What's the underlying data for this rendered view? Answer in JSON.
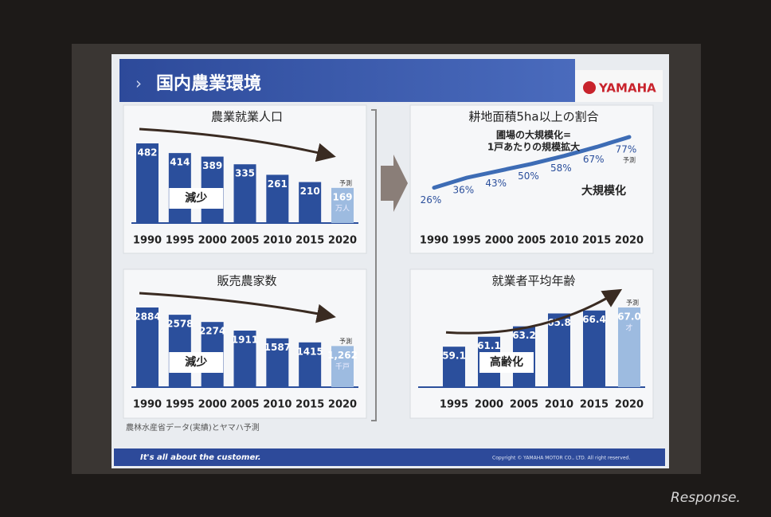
{
  "slide": {
    "title": "国内農業環境",
    "logo": "YAMAHA",
    "source": "農林水産省データ(実績)とヤマハ予測",
    "tagline": "It's all about the customer.",
    "copyright": "Copyright © YAMAHA MOTOR CO., LTD.   All right reserved.",
    "watermark": "Response."
  },
  "chart_data": [
    {
      "type": "bar",
      "title": "農業就業人口",
      "categories": [
        "1990",
        "1995",
        "2000",
        "2005",
        "2010",
        "2015",
        "2020"
      ],
      "values": [
        482,
        414,
        389,
        335,
        261,
        210,
        169
      ],
      "unit": "万人",
      "forecast_label": "予測",
      "annotation": "減少",
      "colors": [
        "#2b4f9c",
        "#2b4f9c",
        "#2b4f9c",
        "#2b4f9c",
        "#2b4f9c",
        "#2b4f9c",
        "#9dbbe0"
      ]
    },
    {
      "type": "bar",
      "title": "販売農家数",
      "categories": [
        "1990",
        "1995",
        "2000",
        "2005",
        "2010",
        "2015",
        "2020"
      ],
      "values": [
        2884,
        2578,
        2274,
        1911,
        1587,
        1415,
        1262
      ],
      "value_labels": [
        "2884",
        "2578",
        "2274",
        "1911",
        "1587",
        "1415",
        "1,262"
      ],
      "unit": "千戸",
      "forecast_label": "予測",
      "annotation": "減少",
      "colors": [
        "#2b4f9c",
        "#2b4f9c",
        "#2b4f9c",
        "#2b4f9c",
        "#2b4f9c",
        "#2b4f9c",
        "#9dbbe0"
      ]
    },
    {
      "type": "line",
      "title": "耕地面積5ha以上の割合",
      "subtitle": [
        "圃場の大規模化=",
        "1戸あたりの規模拡大"
      ],
      "categories": [
        "1990",
        "1995",
        "2000",
        "2005",
        "2010",
        "2015",
        "2020"
      ],
      "values": [
        26,
        36,
        43,
        50,
        58,
        67,
        77
      ],
      "value_labels": [
        "26%",
        "36%",
        "43%",
        "50%",
        "58%",
        "67%",
        "77%"
      ],
      "forecast_label": "予測",
      "annotation": "大規模化",
      "color": "#3d6cb5"
    },
    {
      "type": "bar",
      "title": "就業者平均年齢",
      "categories": [
        "1995",
        "2000",
        "2005",
        "2010",
        "2015",
        "2020"
      ],
      "values": [
        59.1,
        61.1,
        63.2,
        65.8,
        66.4,
        67.0
      ],
      "value_labels": [
        "59.1",
        "61.1",
        "63.2",
        "65.8",
        "66.4",
        "67.0"
      ],
      "unit": "才",
      "forecast_label": "予測",
      "annotation": "高齢化",
      "colors": [
        "#2b4f9c",
        "#2b4f9c",
        "#2b4f9c",
        "#2b4f9c",
        "#2b4f9c",
        "#9dbbe0"
      ]
    }
  ]
}
